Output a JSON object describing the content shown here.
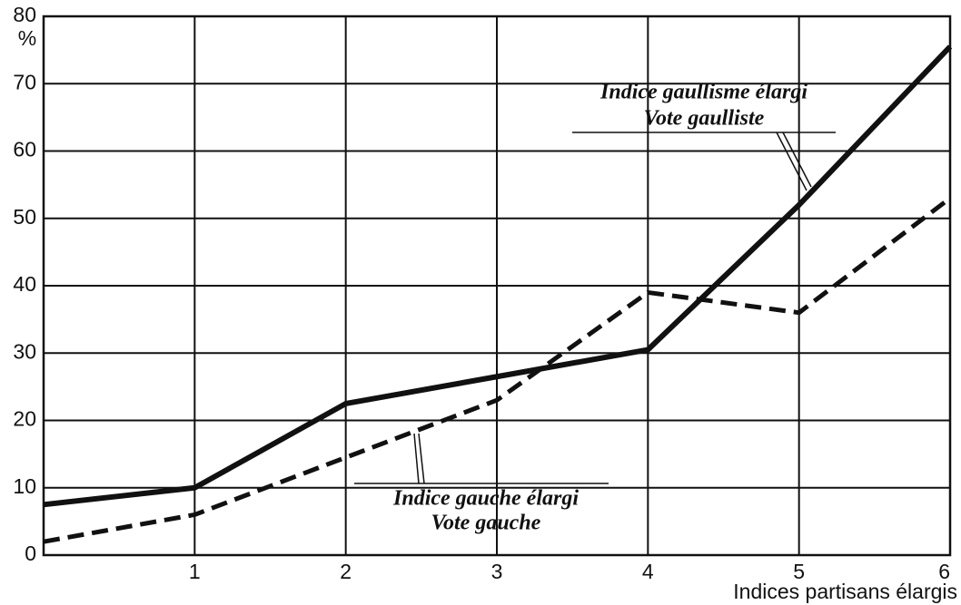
{
  "chart_data": {
    "type": "line",
    "x": [
      0,
      1,
      2,
      3,
      4,
      5,
      6
    ],
    "xlim": [
      0,
      6
    ],
    "xticks": [
      1,
      2,
      3,
      4,
      5,
      6
    ],
    "ylim": [
      0,
      80
    ],
    "yticks": [
      0,
      10,
      20,
      30,
      40,
      50,
      60,
      70,
      80
    ],
    "y_unit": "%",
    "x_label": "Indices partisans élargis",
    "grid": true,
    "series": [
      {
        "label_lines": [
          "Indice gaullisme élargi",
          "Vote gaulliste"
        ],
        "color": "#111111",
        "dashed": false,
        "values": [
          7.5,
          10,
          22.5,
          26.5,
          30.5,
          52,
          75.5
        ]
      },
      {
        "label_lines": [
          "Indice gauche élargi",
          "Vote gauche"
        ],
        "color": "#111111",
        "dashed": true,
        "values": [
          2,
          6,
          14.5,
          23,
          39,
          36,
          53
        ]
      }
    ]
  }
}
